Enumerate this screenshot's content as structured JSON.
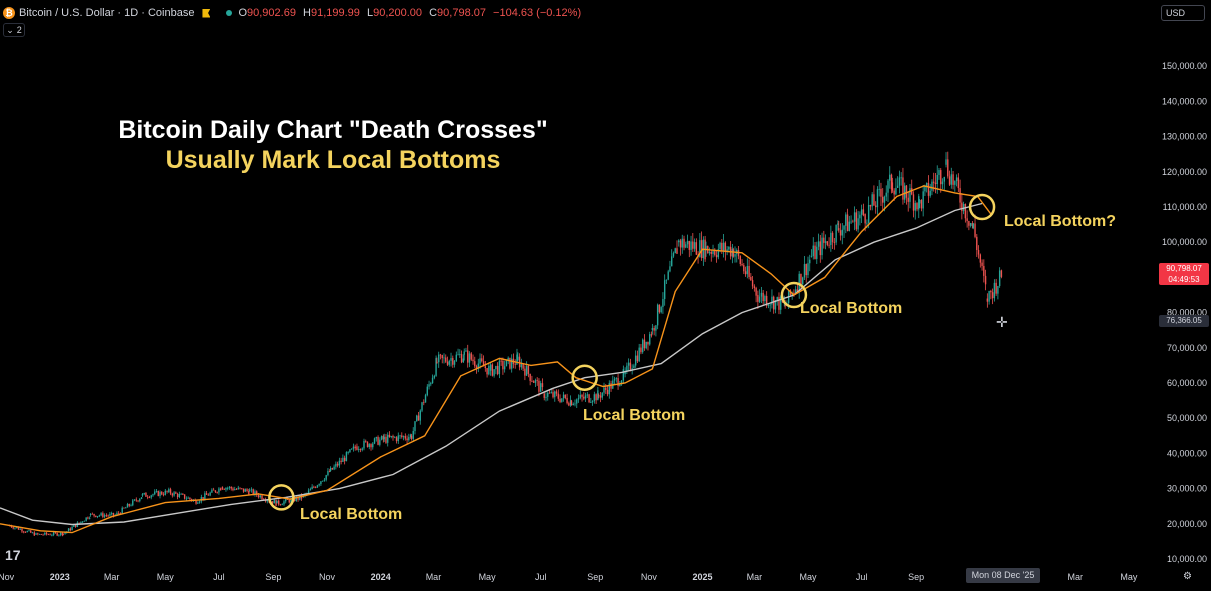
{
  "header": {
    "coin_glyph": "₿",
    "symbol": "Bitcoin / U.S. Dollar · 1D · Coinbase",
    "open_label": "O",
    "open": "90,902.69",
    "high_label": "H",
    "high": "91,199.99",
    "low_label": "L",
    "low": "90,200.00",
    "close_label": "C",
    "close": "90,798.07",
    "change": "−104.63 (−0.12%)",
    "collapse_count": "2"
  },
  "currency": "USD",
  "price_tag": {
    "price": "90,798.07",
    "countdown": "04:49:53",
    "color": "#f23645"
  },
  "crosshair": {
    "price": "76,366.05",
    "date": "Mon 08 Dec '25"
  },
  "title": {
    "line1": "Bitcoin Daily Chart \"Death Crosses\"",
    "line2": "Usually Mark Local Bottoms"
  },
  "annotations": [
    {
      "label": "Local Bottom",
      "date": "2023-09-10",
      "price": 27500
    },
    {
      "label": "Local Bottom",
      "date": "2024-08-20",
      "price": 61500
    },
    {
      "label": "Local Bottom",
      "date": "2025-04-15",
      "price": 85000
    },
    {
      "label": "Local Bottom?",
      "date": "2025-11-15",
      "price": 110000
    }
  ],
  "colors": {
    "background": "#000000",
    "candle_up": "#26a69a",
    "candle_down": "#ef5350",
    "sma_fast": "#f7931a",
    "sma_slow": "#c8c8c8",
    "annotation": "#f4d35e"
  },
  "chart_data": {
    "type": "line",
    "x_range": [
      "2022-10-25",
      "2026-05-25"
    ],
    "ylim": [
      8000,
      162000
    ],
    "grid": false,
    "legend": "none",
    "y_ticks": [
      10000,
      20000,
      30000,
      40000,
      50000,
      60000,
      70000,
      80000,
      90000,
      100000,
      110000,
      120000,
      130000,
      140000,
      150000
    ],
    "y_tick_labels": [
      "10,000.00",
      "20,000.00",
      "30,000.00",
      "40,000.00",
      "50,000.00",
      "60,000.00",
      "70,000.00",
      "80,000.00",
      "90,000.00",
      "100,000.00",
      "110,000.00",
      "120,000.00",
      "130,000.00",
      "140,000.00",
      "150,000.00"
    ],
    "x_ticks": [
      {
        "label": "Nov",
        "date": "2022-11-01",
        "bold": false
      },
      {
        "label": "2023",
        "date": "2023-01-01",
        "bold": true
      },
      {
        "label": "Mar",
        "date": "2023-03-01",
        "bold": false
      },
      {
        "label": "May",
        "date": "2023-05-01",
        "bold": false
      },
      {
        "label": "Jul",
        "date": "2023-07-01",
        "bold": false
      },
      {
        "label": "Sep",
        "date": "2023-09-01",
        "bold": false
      },
      {
        "label": "Nov",
        "date": "2023-11-01",
        "bold": false
      },
      {
        "label": "2024",
        "date": "2024-01-01",
        "bold": true
      },
      {
        "label": "Mar",
        "date": "2024-03-01",
        "bold": false
      },
      {
        "label": "May",
        "date": "2024-05-01",
        "bold": false
      },
      {
        "label": "Jul",
        "date": "2024-07-01",
        "bold": false
      },
      {
        "label": "Sep",
        "date": "2024-09-01",
        "bold": false
      },
      {
        "label": "Nov",
        "date": "2024-11-01",
        "bold": false
      },
      {
        "label": "2025",
        "date": "2025-01-01",
        "bold": true
      },
      {
        "label": "Mar",
        "date": "2025-03-01",
        "bold": false
      },
      {
        "label": "May",
        "date": "2025-05-01",
        "bold": false
      },
      {
        "label": "Jul",
        "date": "2025-07-01",
        "bold": false
      },
      {
        "label": "Sep",
        "date": "2025-09-01",
        "bold": false
      },
      {
        "label": "Mar",
        "date": "2026-03-01",
        "bold": false
      },
      {
        "label": "May",
        "date": "2026-05-01",
        "bold": false
      }
    ],
    "series": [
      {
        "name": "",
        "kind": "candles",
        "x": [
          "2022-11-05",
          "2022-12-05",
          "2023-01-05",
          "2023-02-05",
          "2023-03-05",
          "2023-04-05",
          "2023-05-05",
          "2023-06-05",
          "2023-07-05",
          "2023-08-05",
          "2023-09-05",
          "2023-10-05",
          "2023-11-05",
          "2023-12-05",
          "2024-01-05",
          "2024-02-05",
          "2024-03-05",
          "2024-04-05",
          "2024-05-05",
          "2024-06-05",
          "2024-07-05",
          "2024-08-05",
          "2024-09-05",
          "2024-10-05",
          "2024-11-05",
          "2024-12-05",
          "2025-01-05",
          "2025-02-05",
          "2025-03-05",
          "2025-04-05",
          "2025-05-05",
          "2025-06-05",
          "2025-07-05",
          "2025-08-05",
          "2025-09-05",
          "2025-10-05",
          "2025-11-05",
          "2025-11-21",
          "2025-12-08"
        ],
        "values": [
          19500,
          16900,
          17200,
          22500,
          22400,
          28000,
          29000,
          26500,
          30500,
          29200,
          25800,
          27600,
          35000,
          42000,
          44000,
          45000,
          66000,
          68000,
          63500,
          66500,
          57000,
          55000,
          56500,
          62500,
          75000,
          100000,
          98000,
          98000,
          85000,
          82000,
          96000,
          104000,
          108000,
          117000,
          111000,
          122000,
          104000,
          84000,
          90798
        ]
      },
      {
        "name": "",
        "kind": "sma_fast",
        "x": [
          "2022-10-25",
          "2022-12-10",
          "2023-01-15",
          "2023-03-01",
          "2023-05-01",
          "2023-07-01",
          "2023-08-15",
          "2023-09-20",
          "2023-11-01",
          "2024-01-01",
          "2024-02-20",
          "2024-04-01",
          "2024-05-15",
          "2024-06-20",
          "2024-07-20",
          "2024-08-10",
          "2024-09-10",
          "2024-10-05",
          "2024-11-05",
          "2024-12-01",
          "2025-01-01",
          "2025-02-15",
          "2025-03-20",
          "2025-04-15",
          "2025-05-20",
          "2025-07-01",
          "2025-08-10",
          "2025-09-10",
          "2025-10-15",
          "2025-11-10",
          "2025-11-25"
        ],
        "values": [
          20000,
          18000,
          17500,
          22000,
          26000,
          27200,
          28500,
          27000,
          29500,
          39000,
          45000,
          62000,
          67000,
          65000,
          66000,
          61500,
          59000,
          60000,
          64000,
          86000,
          98000,
          97000,
          91000,
          85000,
          90000,
          103000,
          113000,
          116000,
          114000,
          113000,
          108000
        ]
      },
      {
        "name": "",
        "kind": "sma_slow",
        "x": [
          "2022-10-25",
          "2022-12-01",
          "2023-01-15",
          "2023-03-15",
          "2023-05-15",
          "2023-07-15",
          "2023-09-15",
          "2023-11-15",
          "2024-01-15",
          "2024-03-15",
          "2024-05-15",
          "2024-07-15",
          "2024-08-20",
          "2024-10-01",
          "2024-11-15",
          "2025-01-01",
          "2025-02-15",
          "2025-04-15",
          "2025-06-01",
          "2025-07-15",
          "2025-09-01",
          "2025-10-15",
          "2025-11-15"
        ],
        "values": [
          24500,
          21000,
          19800,
          20500,
          23000,
          25500,
          27500,
          30000,
          34000,
          42000,
          52000,
          58500,
          61500,
          63000,
          65500,
          74000,
          80000,
          85000,
          95000,
          100000,
          104000,
          109000,
          111000
        ]
      }
    ]
  }
}
